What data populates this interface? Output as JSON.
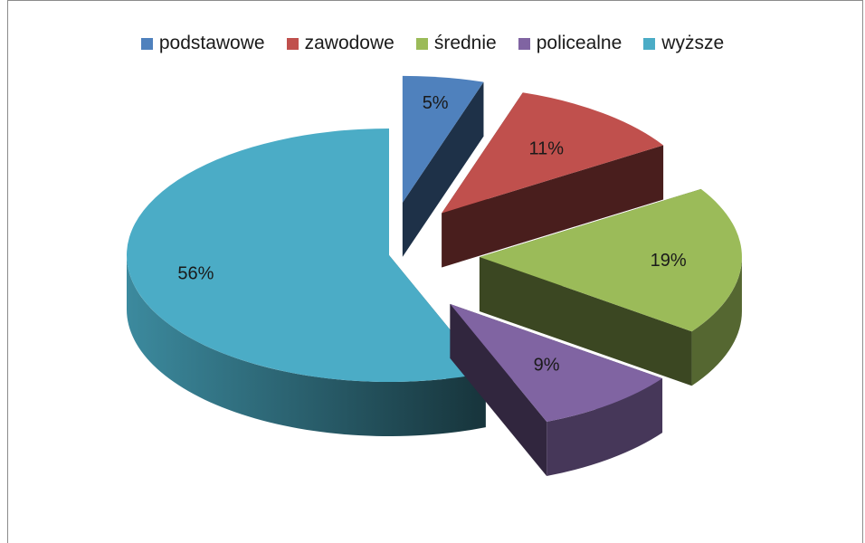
{
  "chart_data": {
    "type": "pie",
    "title": "",
    "legend_position": "top",
    "slices": [
      {
        "name": "podstawowe",
        "value": 5,
        "label": "5%",
        "color": "#4F81BD"
      },
      {
        "name": "zawodowe",
        "value": 11,
        "label": "11%",
        "color": "#C0504D"
      },
      {
        "name": "średnie",
        "value": 19,
        "label": "19%",
        "color": "#9BBB59"
      },
      {
        "name": "policealne",
        "value": 9,
        "label": "9%",
        "color": "#8064A2"
      },
      {
        "name": "wyższe",
        "value": 56,
        "label": "56%",
        "color": "#4BACC6"
      }
    ]
  }
}
